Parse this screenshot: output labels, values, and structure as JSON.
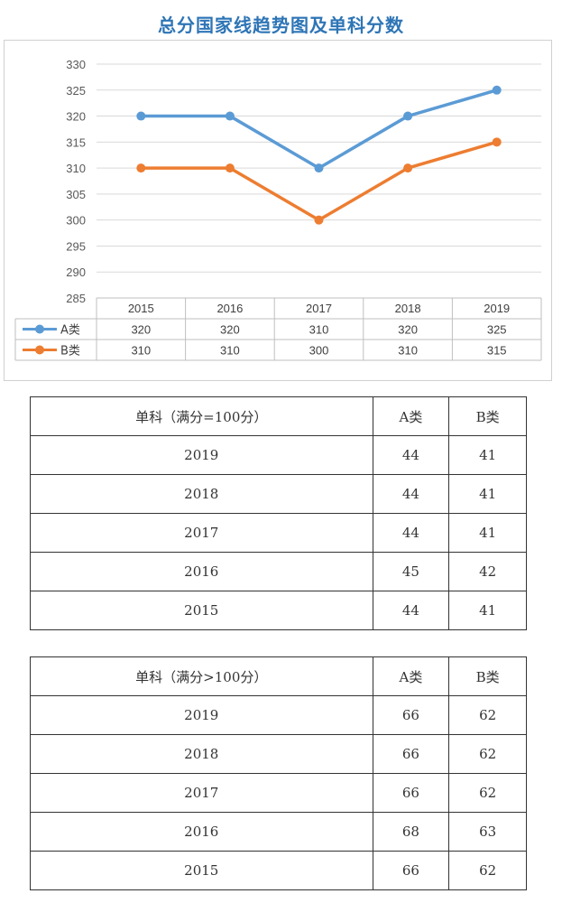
{
  "title": "总分国家线趋势图及单科分数",
  "chart_data": {
    "type": "line",
    "title": "总分国家线趋势图及单科分数",
    "categories": [
      "2015",
      "2016",
      "2017",
      "2018",
      "2019"
    ],
    "series": [
      {
        "name": "A类",
        "values": [
          320,
          320,
          310,
          320,
          325
        ],
        "color": "#5b9bd5"
      },
      {
        "name": "B类",
        "values": [
          310,
          310,
          300,
          310,
          315
        ],
        "color": "#ed7d31"
      }
    ],
    "ylim": [
      285,
      330
    ],
    "yticks": [
      "330",
      "325",
      "320",
      "315",
      "310",
      "305",
      "300",
      "295",
      "290",
      "285"
    ],
    "grid": true,
    "data_table": true
  },
  "table1": {
    "header": [
      "单科（满分=100分）",
      "A类",
      "B类"
    ],
    "rows": [
      [
        "2019",
        "44",
        "41"
      ],
      [
        "2018",
        "44",
        "41"
      ],
      [
        "2017",
        "44",
        "41"
      ],
      [
        "2016",
        "45",
        "42"
      ],
      [
        "2015",
        "44",
        "41"
      ]
    ]
  },
  "table2": {
    "header": [
      "单科（满分>100分）",
      "A类",
      "B类"
    ],
    "rows": [
      [
        "2019",
        "66",
        "62"
      ],
      [
        "2018",
        "66",
        "62"
      ],
      [
        "2017",
        "66",
        "62"
      ],
      [
        "2016",
        "68",
        "63"
      ],
      [
        "2015",
        "66",
        "62"
      ]
    ]
  }
}
